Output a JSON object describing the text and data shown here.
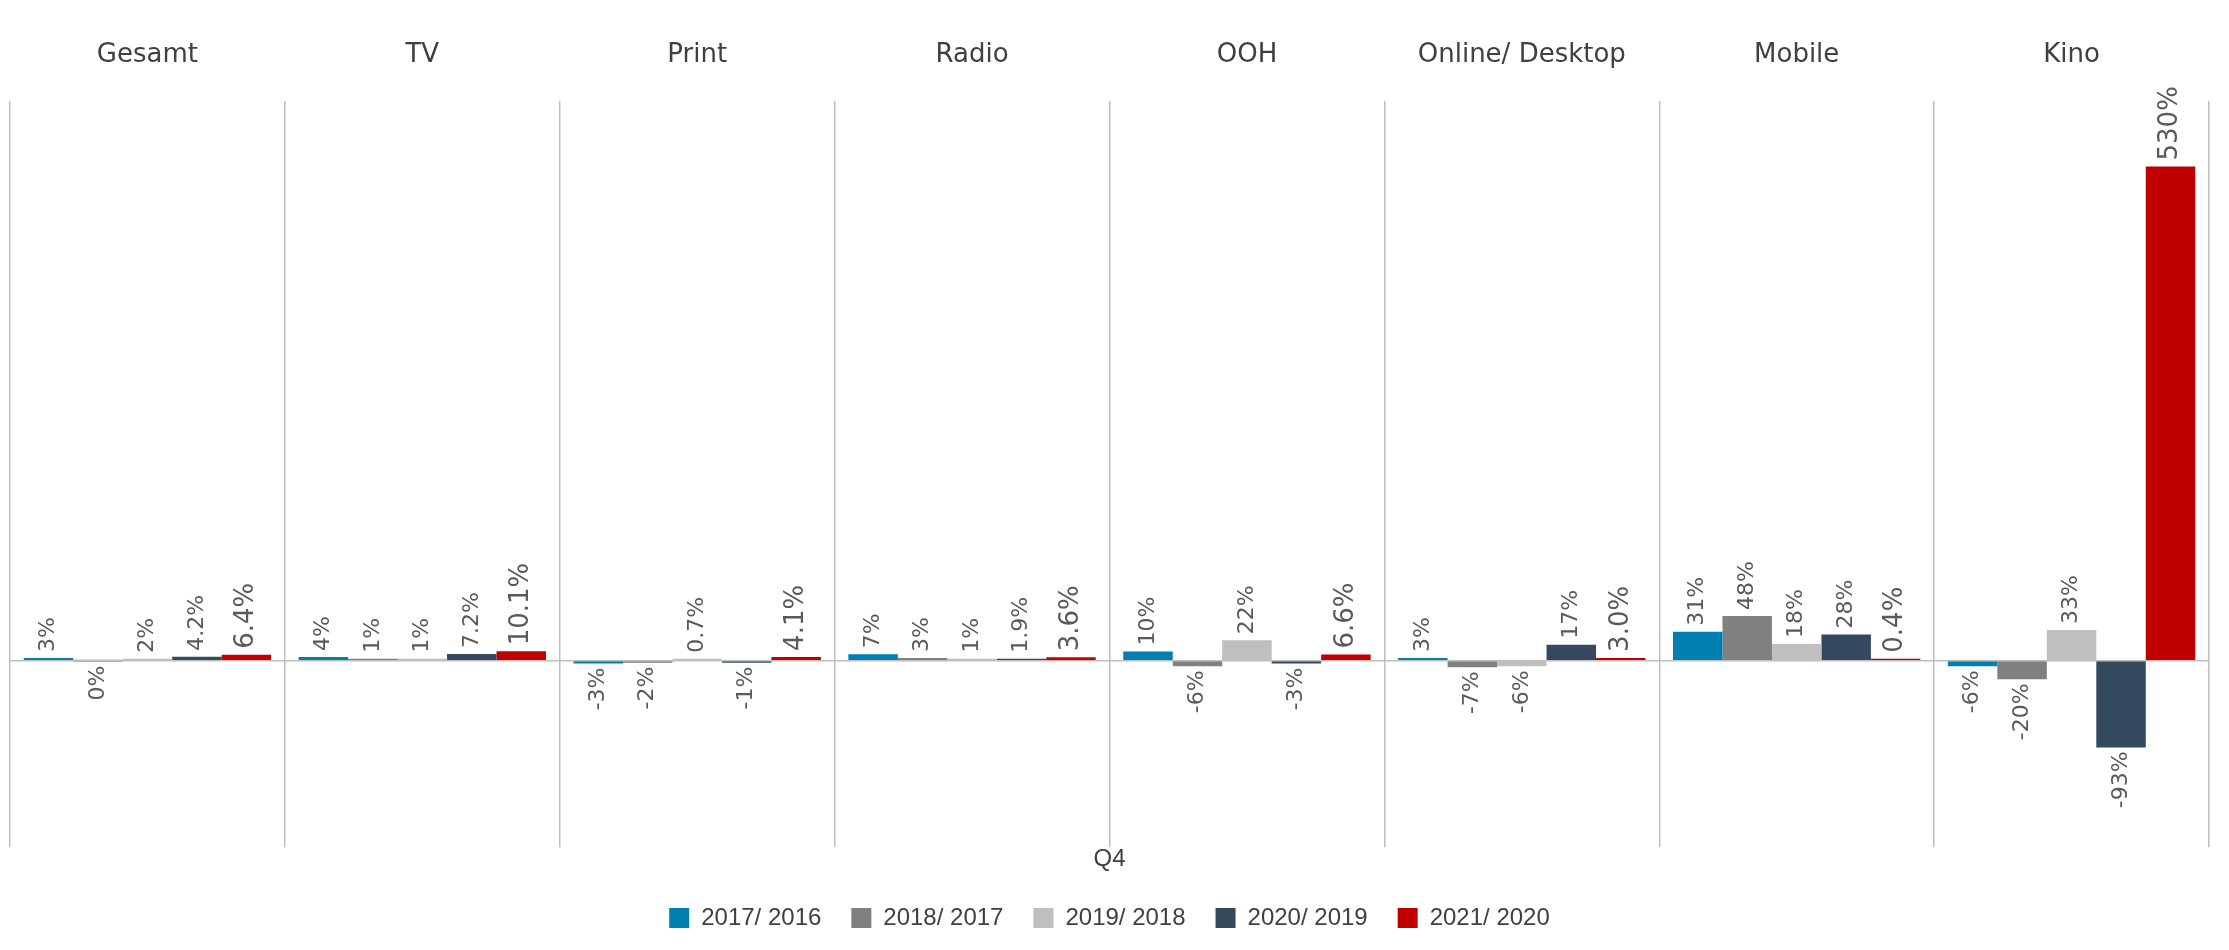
{
  "chart_data": {
    "type": "bar",
    "categories": [
      "Gesamt",
      "TV",
      "Print",
      "Radio",
      "OOH",
      "Online/ Desktop",
      "Mobile",
      "Kino"
    ],
    "series": [
      {
        "name": "2017/ 2016",
        "color": "#0080b0",
        "values": [
          3,
          4,
          -3,
          7,
          10,
          3,
          31,
          -6
        ],
        "value_labels": [
          "3%",
          "4%",
          "-3%",
          "7%",
          "10%",
          "3%",
          "31%",
          "-6%"
        ]
      },
      {
        "name": "2018/ 2017",
        "color": "#808080",
        "values": [
          0,
          1,
          -2,
          3,
          -6,
          -7,
          48,
          -20
        ],
        "value_labels": [
          "0%",
          "1%",
          "-2%",
          "3%",
          "-6%",
          "-7%",
          "48%",
          "-20%"
        ]
      },
      {
        "name": "2019/ 2018",
        "color": "#bfbfbf",
        "values": [
          2,
          1,
          0.7,
          1,
          22,
          -6,
          18,
          33
        ],
        "value_labels": [
          "2%",
          "1%",
          "0.7%",
          "1%",
          "22%",
          "-6%",
          "18%",
          "33%"
        ]
      },
      {
        "name": "2020/ 2019",
        "color": "#34495e",
        "values": [
          4.2,
          7.2,
          -1,
          1.9,
          -3,
          17,
          28,
          -93
        ],
        "value_labels": [
          "4.2%",
          "7.2%",
          "-1%",
          "1.9%",
          "-3%",
          "17%",
          "28%",
          "-93%"
        ]
      },
      {
        "name": "2021/ 2020",
        "color": "#c00000",
        "values": [
          6.4,
          10.1,
          4.1,
          3.6,
          6.6,
          3.0,
          0.4,
          530
        ],
        "value_labels": [
          "6.4%",
          "10.1%",
          "4.1%",
          "3.6%",
          "6.6%",
          "3.0%",
          "0.4%",
          "530%"
        ]
      }
    ],
    "legend": "bottom",
    "legend_title": "Q4",
    "grid": "x"
  }
}
